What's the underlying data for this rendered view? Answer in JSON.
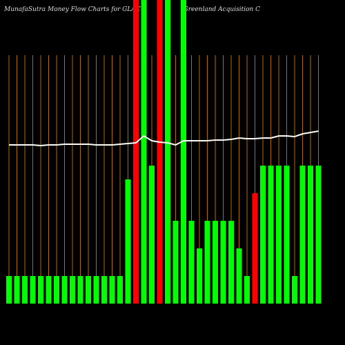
{
  "chart_data": {
    "type": "bar",
    "title": "MunafaSutra  Money Flow  Charts for GLACU",
    "subtitle": "(Greenland Acquisition  C",
    "categories": [
      null,
      null,
      null,
      null,
      null,
      null,
      null,
      null,
      null,
      null,
      null,
      null,
      null,
      null,
      null,
      null,
      null,
      null,
      null,
      null,
      null,
      null,
      null,
      null,
      null,
      null,
      null,
      null,
      null,
      null,
      null,
      null,
      null,
      null,
      null,
      null,
      null,
      null,
      null,
      null
    ],
    "series": [
      {
        "type": "bar",
        "values": [
          40,
          40,
          40,
          40,
          40,
          40,
          40,
          40,
          40,
          40,
          40,
          40,
          40,
          40,
          40,
          180,
          440,
          440,
          200,
          440,
          440,
          120,
          440,
          120,
          80,
          120,
          120,
          120,
          120,
          80,
          40,
          160,
          200,
          200,
          200,
          200,
          40,
          200,
          200,
          200
        ],
        "colors": [
          "#00ff00",
          "#00ff00",
          "#00ff00",
          "#00ff00",
          "#00ff00",
          "#00ff00",
          "#00ff00",
          "#00ff00",
          "#00ff00",
          "#00ff00",
          "#00ff00",
          "#00ff00",
          "#00ff00",
          "#00ff00",
          "#00ff00",
          "#00ff00",
          "#ff0000",
          "#00ff00",
          "#00ff00",
          "#ff0000",
          "#00ff00",
          "#00ff00",
          "#00ff00",
          "#00ff00",
          "#00ff00",
          "#00ff00",
          "#00ff00",
          "#00ff00",
          "#00ff00",
          "#00ff00",
          "#00ff00",
          "#ff0000",
          "#00ff00",
          "#00ff00",
          "#00ff00",
          "#00ff00",
          "#00ff00",
          "#00ff00",
          "#00ff00",
          "#00ff00"
        ]
      },
      {
        "type": "line",
        "color": "#ffffff",
        "values": [
          230,
          230,
          230,
          230,
          229,
          230,
          230,
          231,
          231,
          231,
          231,
          230,
          230,
          230,
          231,
          232,
          233,
          243,
          236,
          234,
          233,
          230,
          236,
          236,
          236,
          236,
          237,
          237,
          238,
          240,
          239,
          239,
          240,
          240,
          243,
          243,
          242,
          246,
          248,
          250
        ]
      }
    ],
    "ylim": [
      0,
      440
    ],
    "grid_color": "#b36b00"
  }
}
